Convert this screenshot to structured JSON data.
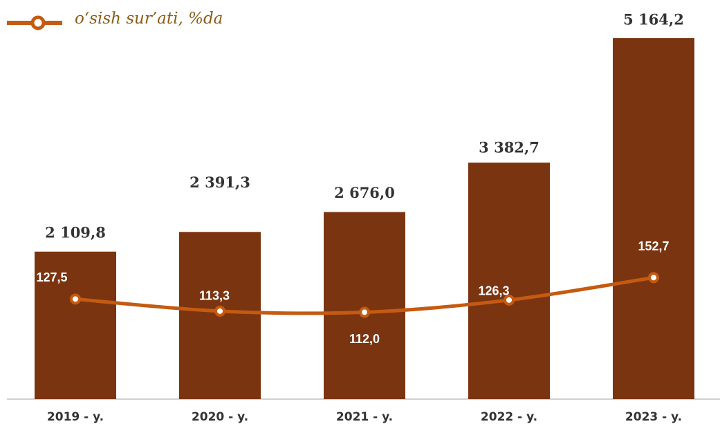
{
  "chart_data": {
    "type": "bar_line",
    "categories": [
      "2019 - y.",
      "2020 - y.",
      "2021 - y.",
      "2022 - y.",
      "2023 - y."
    ],
    "series": [
      {
        "type": "bar",
        "color": "#7a3410",
        "values": [
          2109.8,
          2391.3,
          2676.0,
          3382.7,
          5164.2
        ],
        "value_labels": [
          "2 109,8",
          "2 391,3",
          "2 676,0",
          "3 382,7",
          "5 164,2"
        ]
      },
      {
        "type": "line",
        "name": "o‘sish sur’ati, %da",
        "color": "#c55a11",
        "axis": "y2",
        "values": [
          127.5,
          113.3,
          112.0,
          126.3,
          152.7
        ],
        "value_labels": [
          "127,5",
          "113,3",
          "112,0",
          "126,3",
          "152,7"
        ]
      }
    ],
    "ylim": [
      0,
      5640
    ],
    "y2lim": [
      10,
      473
    ],
    "legend": "top-left"
  }
}
